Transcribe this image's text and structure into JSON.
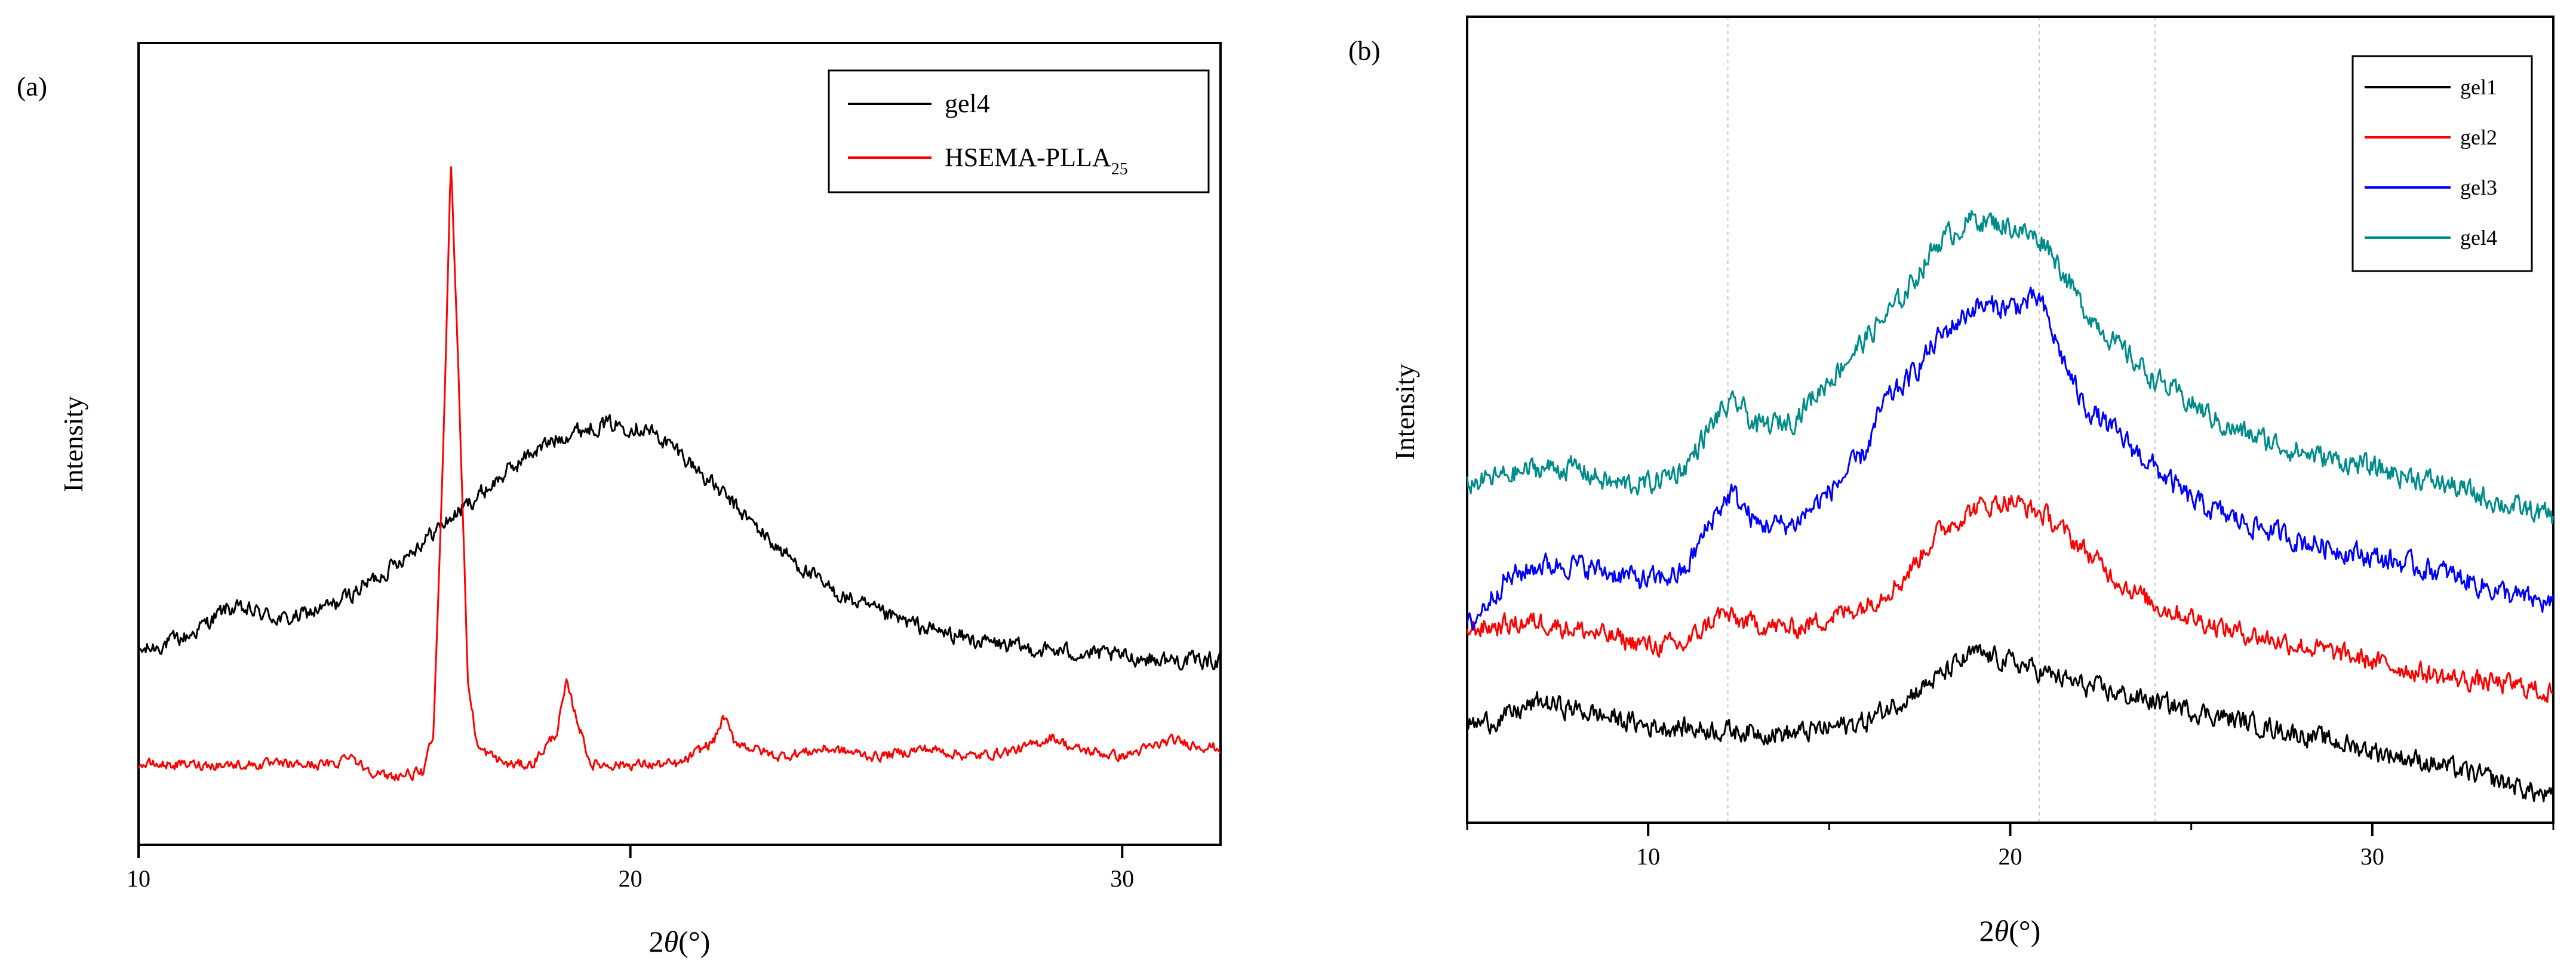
{
  "chart_data": [
    {
      "panel": "(a)",
      "type": "line",
      "xlabel_prefix": "2",
      "xlabel_theta": "θ",
      "xlabel_suffix": "(°)",
      "ylabel": "Intensity",
      "xlim": [
        10,
        32
      ],
      "x_ticks": [
        10,
        20,
        30
      ],
      "x_tick_labels": [
        "10",
        "20",
        "30"
      ],
      "ylim": [
        0,
        100
      ],
      "y_ticks_shown": false,
      "legend_position": "top-right",
      "series": [
        {
          "name": "gel4",
          "legend_label": "gel4",
          "color": "#000000",
          "noise": 1.6,
          "points": [
            [
              10,
              24
            ],
            [
              11,
              26
            ],
            [
              11.8,
              29.5
            ],
            [
              12.4,
              29
            ],
            [
              13,
              28
            ],
            [
              14,
              30
            ],
            [
              15,
              34
            ],
            [
              16,
              39
            ],
            [
              17,
              44
            ],
            [
              18,
              49
            ],
            [
              18.8,
              51.5
            ],
            [
              19.5,
              52.5
            ],
            [
              20.3,
              52
            ],
            [
              21,
              49
            ],
            [
              22,
              43
            ],
            [
              23,
              37
            ],
            [
              24,
              32
            ],
            [
              25,
              29
            ],
            [
              26,
              27
            ],
            [
              27,
              25.5
            ],
            [
              28,
              24.5
            ],
            [
              29,
              24
            ],
            [
              30,
              23.5
            ],
            [
              31,
              23
            ],
            [
              32,
              23
            ]
          ]
        },
        {
          "name": "HSEMA-PLLA25",
          "legend_label": "HSEMA-PLLA",
          "legend_sub": "25",
          "color": "#ff0000",
          "noise": 1.0,
          "points": [
            [
              10,
              10
            ],
            [
              11,
              10
            ],
            [
              12,
              10
            ],
            [
              13,
              10
            ],
            [
              14,
              10
            ],
            [
              14.3,
              11.5
            ],
            [
              14.5,
              10
            ],
            [
              15,
              8.5
            ],
            [
              15.8,
              9
            ],
            [
              16,
              14
            ],
            [
              16.2,
              50
            ],
            [
              16.35,
              86
            ],
            [
              16.5,
              60
            ],
            [
              16.7,
              20
            ],
            [
              16.9,
              12
            ],
            [
              17.5,
              10
            ],
            [
              18,
              10
            ],
            [
              18.5,
              14
            ],
            [
              18.7,
              20
            ],
            [
              18.9,
              16
            ],
            [
              19.2,
              10
            ],
            [
              20,
              10
            ],
            [
              21,
              10
            ],
            [
              21.7,
              13
            ],
            [
              21.9,
              16
            ],
            [
              22.1,
              13
            ],
            [
              22.5,
              12
            ],
            [
              23,
              11
            ],
            [
              24,
              12
            ],
            [
              25,
              11
            ],
            [
              26,
              12
            ],
            [
              27,
              11
            ],
            [
              28,
              12
            ],
            [
              28.6,
              13.5
            ],
            [
              29,
              12
            ],
            [
              30,
              11
            ],
            [
              31,
              13
            ],
            [
              32,
              12
            ]
          ]
        }
      ]
    },
    {
      "panel": "(b)",
      "type": "line",
      "xlabel_prefix": "2",
      "xlabel_theta": "θ",
      "xlabel_suffix": "(°)",
      "ylabel": "Intensity",
      "xlim": [
        5,
        35
      ],
      "x_ticks": [
        10,
        20,
        30
      ],
      "x_tick_labels": [
        "10",
        "20",
        "30"
      ],
      "minor_x_ticks": [
        5,
        15,
        25,
        35
      ],
      "ylim": [
        0,
        100
      ],
      "y_ticks_shown": false,
      "reference_lines_x": [
        12.2,
        20.8,
        24
      ],
      "legend_position": "top-right",
      "series": [
        {
          "name": "gel1",
          "legend_label": "gel1",
          "color": "#000000",
          "noise": 2.0,
          "points": [
            [
              5,
              12
            ],
            [
              6,
              13
            ],
            [
              7,
              15
            ],
            [
              8,
              14
            ],
            [
              9,
              13
            ],
            [
              10,
              12
            ],
            [
              12,
              11.5
            ],
            [
              14,
              11
            ],
            [
              16,
              12.5
            ],
            [
              18,
              18
            ],
            [
              19,
              21
            ],
            [
              20,
              20
            ],
            [
              22,
              17
            ],
            [
              24,
              15
            ],
            [
              26,
              13
            ],
            [
              28,
              11
            ],
            [
              30,
              9
            ],
            [
              32,
              7
            ],
            [
              34,
              4.5
            ],
            [
              35,
              3
            ]
          ]
        },
        {
          "name": "gel2",
          "legend_label": "gel2",
          "color": "#ff0000",
          "noise": 2.0,
          "points": [
            [
              5,
              24
            ],
            [
              6,
              24.5
            ],
            [
              7,
              25
            ],
            [
              8,
              24
            ],
            [
              9,
              23
            ],
            [
              10,
              22
            ],
            [
              11,
              22
            ],
            [
              12,
              26
            ],
            [
              12.5,
              25
            ],
            [
              14,
              24
            ],
            [
              16,
              27
            ],
            [
              17,
              30
            ],
            [
              18,
              36
            ],
            [
              19,
              39
            ],
            [
              20,
              40
            ],
            [
              21,
              38
            ],
            [
              22,
              34
            ],
            [
              23,
              30
            ],
            [
              24,
              27
            ],
            [
              26,
              24
            ],
            [
              28,
              22
            ],
            [
              30,
              20
            ],
            [
              32,
              18
            ],
            [
              34,
              17
            ],
            [
              35,
              16
            ]
          ]
        },
        {
          "name": "gel3",
          "legend_label": "gel3",
          "color": "#0000ff",
          "noise": 2.2,
          "points": [
            [
              5,
              24
            ],
            [
              6,
              30
            ],
            [
              7,
              32
            ],
            [
              8,
              32
            ],
            [
              9,
              31
            ],
            [
              10,
              30
            ],
            [
              11,
              31
            ],
            [
              11.8,
              38
            ],
            [
              12.3,
              41
            ],
            [
              13,
              37
            ],
            [
              14,
              37
            ],
            [
              15,
              41
            ],
            [
              16,
              46
            ],
            [
              16.5,
              52
            ],
            [
              17.2,
              55
            ],
            [
              18,
              60
            ],
            [
              19,
              64
            ],
            [
              20,
              64
            ],
            [
              20.8,
              65
            ],
            [
              21.5,
              57
            ],
            [
              22,
              52
            ],
            [
              23,
              48
            ],
            [
              24,
              44
            ],
            [
              25,
              40
            ],
            [
              26,
              38
            ],
            [
              28,
              35
            ],
            [
              30,
              33
            ],
            [
              32,
              31
            ],
            [
              34,
              28
            ],
            [
              35,
              27
            ]
          ]
        },
        {
          "name": "gel4",
          "legend_label": "gel4",
          "color": "#008b8b",
          "noise": 2.2,
          "points": [
            [
              5,
              42
            ],
            [
              6,
              43
            ],
            [
              7,
              44
            ],
            [
              8,
              44
            ],
            [
              9,
              42
            ],
            [
              10,
              42
            ],
            [
              11,
              44
            ],
            [
              12,
              51
            ],
            [
              12.5,
              52
            ],
            [
              13,
              49
            ],
            [
              14,
              50
            ],
            [
              15,
              55
            ],
            [
              16,
              60
            ],
            [
              17,
              65
            ],
            [
              18,
              72
            ],
            [
              19,
              75
            ],
            [
              20,
              74
            ],
            [
              21,
              72
            ],
            [
              21.5,
              68
            ],
            [
              22,
              64
            ],
            [
              23,
              59
            ],
            [
              24,
              55
            ],
            [
              25,
              52
            ],
            [
              26,
              49
            ],
            [
              28,
              46
            ],
            [
              30,
              44
            ],
            [
              32,
              42
            ],
            [
              34,
              39
            ],
            [
              35,
              38
            ]
          ]
        }
      ]
    }
  ]
}
